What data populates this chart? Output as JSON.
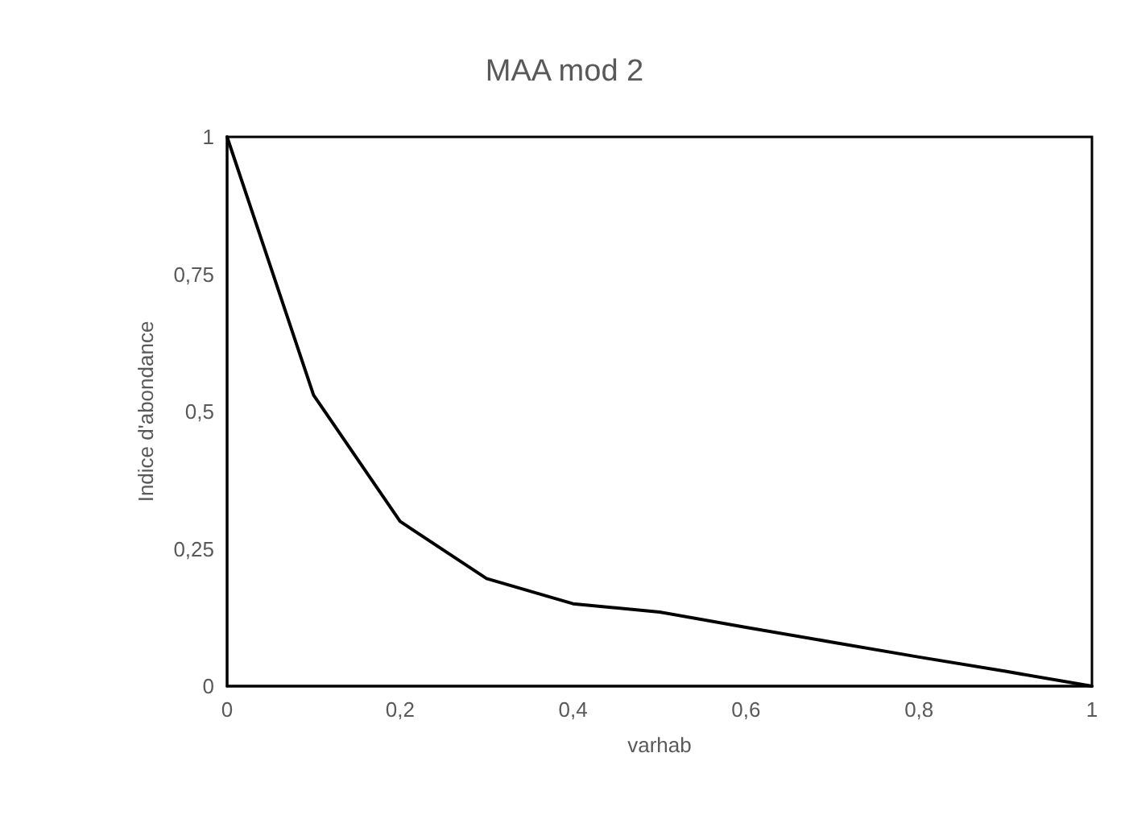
{
  "chart_data": {
    "type": "line",
    "title": "MAA mod 2",
    "xlabel": "varhab",
    "ylabel": "Indice d'abondance",
    "x": [
      0,
      0.1,
      0.2,
      0.3,
      0.4,
      0.5,
      0.6,
      0.7,
      0.8,
      0.9,
      1
    ],
    "series": [
      {
        "color": "#000000",
        "values": [
          1,
          0.53,
          0.3,
          0.196,
          0.15,
          0.135,
          0.107,
          0.08,
          0.053,
          0.027,
          0
        ]
      }
    ],
    "xlim": [
      0,
      1
    ],
    "xticks": [
      0,
      {
        "value": 0.2,
        "label": "0,2"
      },
      {
        "value": 0.4,
        "label": "0,4"
      },
      {
        "value": 0.6,
        "label": "0,6"
      },
      {
        "value": 0.8,
        "label": "0,8"
      },
      1
    ],
    "ylim": [
      0,
      1
    ],
    "yticks": [
      0,
      {
        "value": 0.25,
        "label": "0,25"
      },
      {
        "value": 0.5,
        "label": "0,5"
      },
      {
        "value": 0.75,
        "label": "0,75"
      },
      1
    ],
    "grid": false,
    "marker": "none",
    "line_style": "solid"
  }
}
